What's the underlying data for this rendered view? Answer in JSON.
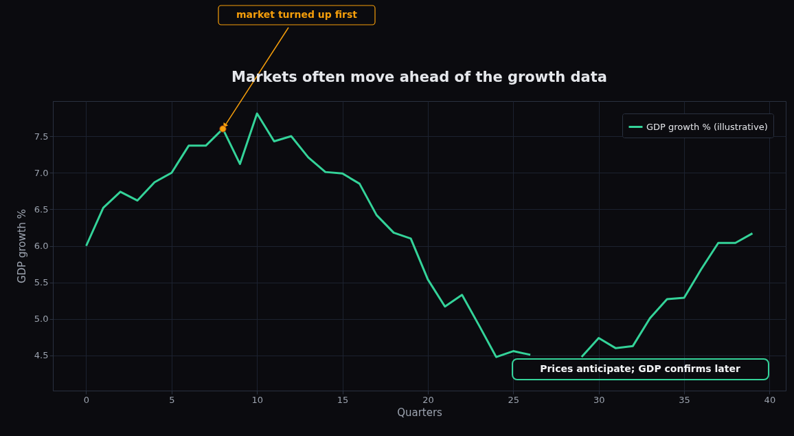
{
  "chart_data": {
    "type": "line",
    "title": "Markets often move ahead of the growth data",
    "xlabel": "Quarters",
    "ylabel": "GDP growth %",
    "x": [
      0,
      1,
      2,
      3,
      4,
      5,
      6,
      7,
      8,
      9,
      10,
      11,
      12,
      13,
      14,
      15,
      16,
      17,
      18,
      19,
      20,
      21,
      22,
      23,
      24,
      25,
      26,
      27,
      28,
      29,
      30,
      31,
      32,
      33,
      34,
      35,
      36,
      37,
      38,
      39
    ],
    "series": [
      {
        "name": "GDP growth % (illustrative)",
        "color": "#34d399",
        "values": [
          6.0,
          6.52,
          6.74,
          6.62,
          6.87,
          7.0,
          7.37,
          7.37,
          7.6,
          7.12,
          7.81,
          7.43,
          7.5,
          7.21,
          7.01,
          6.99,
          6.85,
          6.42,
          6.18,
          6.1,
          5.54,
          5.17,
          5.33,
          4.91,
          4.48,
          4.56,
          4.51,
          null,
          null,
          4.48,
          4.74,
          4.6,
          4.63,
          5.01,
          5.27,
          5.29,
          5.68,
          6.04,
          6.04,
          6.17
        ]
      }
    ],
    "xlim": [
      -1.95,
      40.95
    ],
    "xticks": [
      0,
      5,
      10,
      15,
      20,
      25,
      30,
      35,
      40
    ],
    "ylim": [
      4.02,
      7.98
    ],
    "yticks": [
      4.5,
      {
        "value": 5,
        "label": "5.0"
      },
      5.5,
      {
        "value": 6,
        "label": "6.0"
      },
      6.5,
      {
        "value": 7,
        "label": "7.0"
      },
      7.5
    ],
    "grid": true,
    "legend": "top right",
    "line_style": "solid",
    "marker": "none",
    "annotations": [
      {
        "text": "market turned up first",
        "x": 8,
        "y": 7.6
      },
      "Prices anticipate; GDP confirms later"
    ]
  }
}
